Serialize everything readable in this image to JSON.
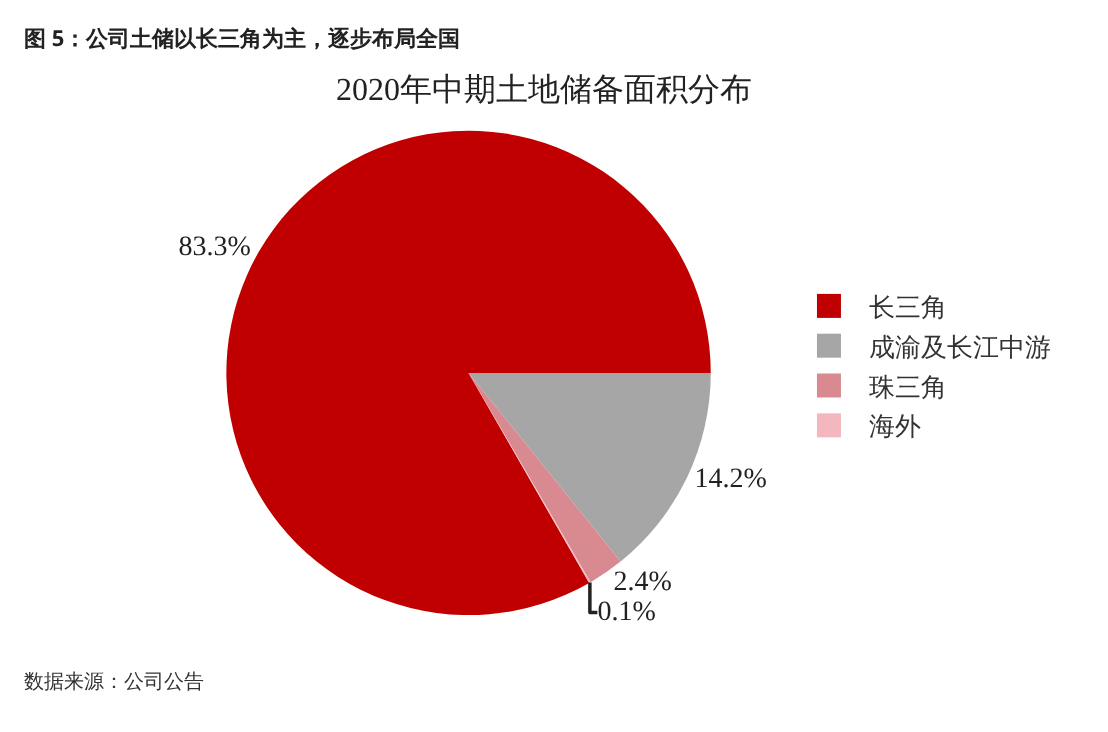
{
  "chart_data": {
    "type": "pie",
    "title": "图 5：公司土储以长三角为主，逐步布局全国",
    "subtitle": "2020年中期土地储备面积分布",
    "categories": [
      "长三角",
      "成渝及长江中游",
      "珠三角",
      "海外"
    ],
    "values": [
      83.3,
      14.2,
      2.4,
      0.1
    ],
    "colors": [
      "#c00000",
      "#a6a6a6",
      "#d98a90",
      "#f2b8bd"
    ],
    "value_labels": [
      "83.3%",
      "14.2%",
      "2.4%",
      "0.1%"
    ],
    "legend": "right",
    "annotations": [
      "数据来源：公司公告"
    ]
  }
}
